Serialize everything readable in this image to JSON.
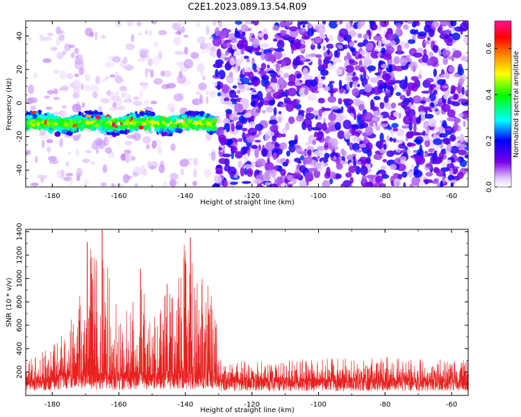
{
  "title": "C2E1.2023.089.13.54.R09",
  "chart_data": [
    {
      "type": "heatmap",
      "xlabel": "Height of straight line (km)",
      "ylabel": "Frequency (Hz)",
      "xlim": [
        -188,
        -55
      ],
      "ylim": [
        -50,
        49
      ],
      "xticks": [
        "-180",
        "-160",
        "-140",
        "-120",
        "-100",
        "-80",
        "-60"
      ],
      "yticks": [
        "40",
        "20",
        "0",
        "-20",
        "-40"
      ],
      "colorbar": {
        "label": "Normalized spectral amplitude",
        "range": [
          0,
          0.72
        ],
        "ticks": [
          "0.0",
          "0.2",
          "0.4",
          "0.6"
        ],
        "colormap": [
          "#ffffff",
          "#7a00e6",
          "#0000ff",
          "#00ffff",
          "#00ff00",
          "#ffff00",
          "#ff8000",
          "#ff0000",
          "#ff1493"
        ]
      },
      "features": {
        "signal_band": {
          "x": [
            -188,
            -131
          ],
          "freq_center": -12,
          "freq_halfwidth": 5,
          "peak_amplitude": 0.7
        },
        "noise_dense_region": {
          "x": [
            -131,
            -55
          ],
          "typical_amplitude": 0.1
        },
        "noise_sparse_region": {
          "x": [
            -188,
            -131
          ],
          "typical_amplitude": 0.05
        }
      },
      "grid": false
    },
    {
      "type": "line",
      "xlabel": "Height of straight line (km)",
      "ylabel": "SNR (10 * v/v)",
      "xlim": [
        -188,
        -55
      ],
      "ylim": [
        0,
        1420
      ],
      "xticks": [
        "-180",
        "-160",
        "-140",
        "-120",
        "-100",
        "-80",
        "-60"
      ],
      "yticks": [
        "200",
        "400",
        "600",
        "800",
        "1000",
        "1200",
        "1400"
      ],
      "color": "#e8201e",
      "grid": false,
      "envelope": {
        "x": [
          -188,
          -180,
          -175,
          -172,
          -169,
          -166,
          -164,
          -160,
          -156,
          -153,
          -150,
          -146,
          -143,
          -140,
          -137,
          -134,
          -131,
          -130,
          -120,
          -100,
          -80,
          -60,
          -55
        ],
        "baseline": [
          100,
          120,
          150,
          160,
          150,
          150,
          140,
          130,
          140,
          150,
          130,
          150,
          160,
          150,
          150,
          160,
          150,
          110,
          110,
          110,
          110,
          110,
          110
        ],
        "peak": [
          300,
          420,
          600,
          900,
          1300,
          1150,
          1420,
          700,
          800,
          1050,
          650,
          950,
          850,
          1350,
          1050,
          1000,
          900,
          300,
          300,
          320,
          350,
          300,
          300
        ]
      },
      "notable_peaks": [
        {
          "x": -169.5,
          "y": 1310
        },
        {
          "x": -165.0,
          "y": 1420
        },
        {
          "x": -138.5,
          "y": 1350
        },
        {
          "x": -153.5,
          "y": 1080
        },
        {
          "x": -145.5,
          "y": 950
        }
      ]
    }
  ]
}
